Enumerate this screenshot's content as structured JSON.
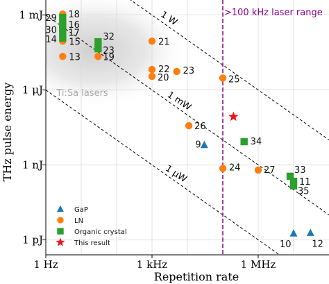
{
  "chart_data": {
    "type": "scatter",
    "xlabel": "Repetition rate",
    "ylabel": "THz pulse energy",
    "x_scale": "log",
    "y_scale": "log",
    "xlim_hz": [
      1,
      100000000
    ],
    "ylim_j": [
      2.5e-13,
      0.004
    ],
    "x_ticks": [
      {
        "value": 1,
        "label": "1 Hz"
      },
      {
        "value": 1000,
        "label": "1 kHz"
      },
      {
        "value": 1000000,
        "label": "1 MHz"
      }
    ],
    "y_ticks": [
      {
        "value": 0.001,
        "label": "1 mJ"
      },
      {
        "value": 1e-06,
        "label": "1 μJ"
      },
      {
        "value": 1e-09,
        "label": "1 nJ"
      },
      {
        "value": 1e-12,
        "label": "1 pJ"
      }
    ],
    "grid": true,
    "legend": {
      "placement": "bottom-left",
      "entries": [
        "GaP",
        "LN",
        "Organic crystal",
        "This result"
      ]
    },
    "series": [
      {
        "name": "GaP",
        "marker": "triangle",
        "color": "#1f77b4",
        "points": [
          {
            "x": 30000,
            "y": 6.3e-09,
            "label": "9"
          },
          {
            "x": 10000000,
            "y": 1.8e-12,
            "label": "10"
          },
          {
            "x": 30000000,
            "y": 1.9e-12,
            "label": "12"
          }
        ]
      },
      {
        "name": "LN",
        "marker": "circle",
        "color": "#ff7f0e",
        "points": [
          {
            "x": 3,
            "y": 0.0011,
            "label": "18"
          },
          {
            "x": 3,
            "y": 9e-05,
            "label": "15"
          },
          {
            "x": 3,
            "y": 2.2e-05,
            "label": "13"
          },
          {
            "x": 30,
            "y": 2.2e-05,
            "label": "19"
          },
          {
            "x": 1000,
            "y": 9e-05,
            "label": "21"
          },
          {
            "x": 1000,
            "y": 6.6e-06,
            "label": "22"
          },
          {
            "x": 1000,
            "y": 3.5e-06,
            "label": "20"
          },
          {
            "x": 5000,
            "y": 5.5e-06,
            "label": "23"
          },
          {
            "x": 11000,
            "y": 3.7e-08,
            "label": "26"
          },
          {
            "x": 100000,
            "y": 3e-06,
            "label": "25"
          },
          {
            "x": 100000,
            "y": 7.2e-10,
            "label": "24"
          },
          {
            "x": 1000000,
            "y": 6.2e-10,
            "label": "27"
          }
        ]
      },
      {
        "name": "Organic crystal",
        "marker": "square",
        "color": "#2ca02c",
        "points": [
          {
            "x": 3,
            "y": 0.0008,
            "label": "29"
          },
          {
            "x": 3,
            "y": 0.00042,
            "label": "16"
          },
          {
            "x": 3,
            "y": 0.00028,
            "label": "30"
          },
          {
            "x": 3,
            "y": 0.00019,
            "label": "17"
          },
          {
            "x": 3,
            "y": 0.00012,
            "label": "14"
          },
          {
            "x": 30,
            "y": 8.5e-05,
            "label": "32"
          },
          {
            "x": 30,
            "y": 4.5e-05,
            "label": "23"
          },
          {
            "x": 400000,
            "y": 8.5e-09,
            "label": "34"
          },
          {
            "x": 8000000,
            "y": 3.5e-10,
            "label": "33"
          },
          {
            "x": 10000000,
            "y": 2.2e-10,
            "label": "11"
          },
          {
            "x": 10000000,
            "y": 1.45e-10,
            "label": "35"
          }
        ]
      },
      {
        "name": "This result",
        "marker": "star",
        "color": "#e8141c",
        "points": [
          {
            "x": 200000,
            "y": 8.5e-08,
            "label": ""
          }
        ]
      }
    ],
    "power_lines": [
      {
        "label": "1 W",
        "watts": 1
      },
      {
        "label": "1 mW",
        "watts": 0.001
      },
      {
        "label": "1 μW",
        "watts": 1e-06
      }
    ],
    "vline": {
      "x": 100000,
      "label": ">100 kHz laser range",
      "color": "#8b008b"
    },
    "region_label": {
      "text": "Ti:Sa lasers",
      "color": "#a8a8a8"
    }
  }
}
